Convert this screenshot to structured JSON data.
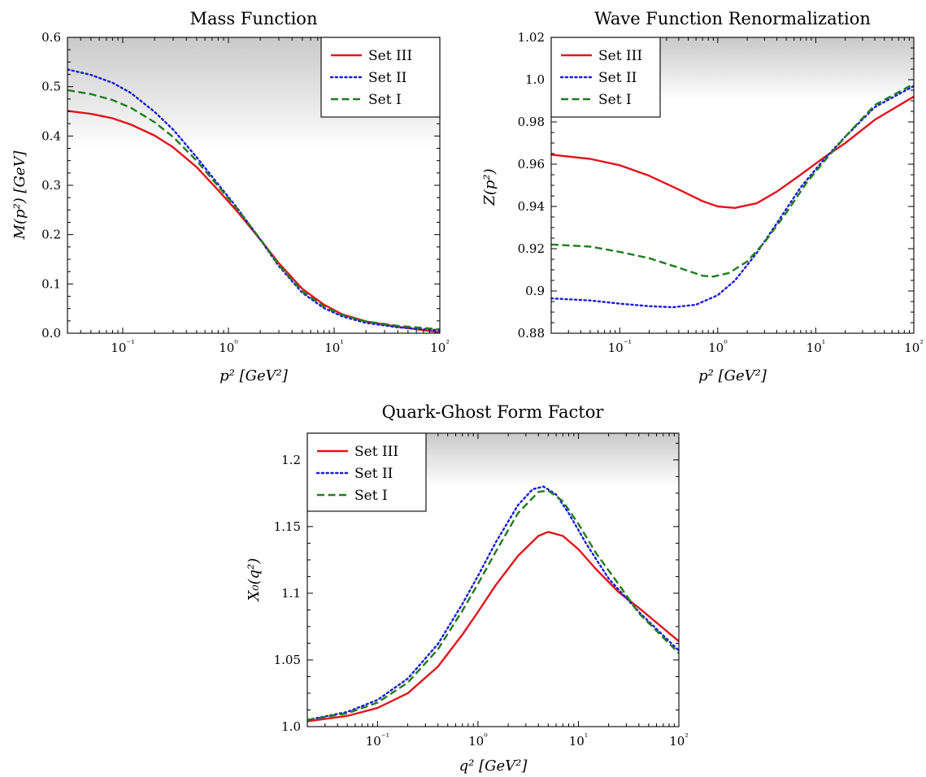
{
  "chart_data": [
    {
      "type": "line",
      "title": "Mass Function",
      "xlabel": "p² [GeV²]",
      "ylabel": "M(p²) [GeV]",
      "xscale": "log",
      "xlim": [
        0.03,
        100
      ],
      "ylim": [
        0.0,
        0.6
      ],
      "x_ticks": [
        {
          "value": 0.1,
          "label": "10⁻¹"
        },
        {
          "value": 1,
          "label": "10⁰"
        },
        {
          "value": 10,
          "label": "10¹"
        },
        {
          "value": 100,
          "label": "10²"
        }
      ],
      "y_ticks": [
        {
          "value": 0.0,
          "label": "0.0"
        },
        {
          "value": 0.1,
          "label": "0.1"
        },
        {
          "value": 0.2,
          "label": "0.2"
        },
        {
          "value": 0.3,
          "label": "0.3"
        },
        {
          "value": 0.4,
          "label": "0.4"
        },
        {
          "value": 0.5,
          "label": "0.5"
        },
        {
          "value": 0.6,
          "label": "0.6"
        }
      ],
      "grid": false,
      "legend_position": "top-right",
      "shaded_band": [
        0.37,
        0.6
      ],
      "series": [
        {
          "name": "Set III",
          "color": "#e3141b",
          "dash": "solid",
          "x": [
            0.03,
            0.05,
            0.08,
            0.12,
            0.2,
            0.3,
            0.5,
            0.8,
            1.2,
            2,
            3,
            5,
            8,
            12,
            20,
            40,
            100
          ],
          "y": [
            0.451,
            0.445,
            0.436,
            0.423,
            0.401,
            0.377,
            0.337,
            0.29,
            0.248,
            0.19,
            0.142,
            0.09,
            0.058,
            0.038,
            0.024,
            0.013,
            0.002
          ]
        },
        {
          "name": "Set II",
          "color": "#1a1adb",
          "dash": "dotted",
          "x": [
            0.03,
            0.05,
            0.08,
            0.12,
            0.2,
            0.3,
            0.5,
            0.8,
            1.2,
            2,
            3,
            5,
            8,
            12,
            20,
            40,
            100
          ],
          "y": [
            0.535,
            0.524,
            0.508,
            0.487,
            0.449,
            0.413,
            0.357,
            0.302,
            0.255,
            0.19,
            0.136,
            0.082,
            0.051,
            0.034,
            0.021,
            0.012,
            0.006
          ]
        },
        {
          "name": "Set I",
          "color": "#1e7d1e",
          "dash": "dashed",
          "x": [
            0.03,
            0.05,
            0.08,
            0.12,
            0.2,
            0.3,
            0.5,
            0.8,
            1.2,
            2,
            3,
            5,
            8,
            12,
            20,
            40,
            100
          ],
          "y": [
            0.493,
            0.485,
            0.473,
            0.457,
            0.428,
            0.398,
            0.35,
            0.298,
            0.253,
            0.191,
            0.138,
            0.085,
            0.054,
            0.037,
            0.024,
            0.015,
            0.008
          ]
        }
      ]
    },
    {
      "type": "line",
      "title": "Wave Function Renormalization",
      "xlabel": "p² [GeV²]",
      "ylabel": "Z(p²)",
      "xscale": "log",
      "xlim": [
        0.02,
        100
      ],
      "ylim": [
        0.88,
        1.02
      ],
      "x_ticks": [
        {
          "value": 0.1,
          "label": "10⁻¹"
        },
        {
          "value": 1,
          "label": "10⁰"
        },
        {
          "value": 10,
          "label": "10¹"
        },
        {
          "value": 100,
          "label": "10²"
        }
      ],
      "y_ticks": [
        {
          "value": 0.88,
          "label": "0.88"
        },
        {
          "value": 0.9,
          "label": "0.9"
        },
        {
          "value": 0.92,
          "label": "0.92"
        },
        {
          "value": 0.94,
          "label": "0.94"
        },
        {
          "value": 0.96,
          "label": "0.96"
        },
        {
          "value": 0.98,
          "label": "0.98"
        },
        {
          "value": 1.0,
          "label": "1.0"
        },
        {
          "value": 1.02,
          "label": "1.02"
        }
      ],
      "grid": false,
      "legend_position": "top-left",
      "shaded_band": [
        0.99,
        1.02
      ],
      "series": [
        {
          "name": "Set III",
          "color": "#e3141b",
          "dash": "solid",
          "x": [
            0.02,
            0.05,
            0.1,
            0.2,
            0.4,
            0.7,
            1.0,
            1.5,
            2.5,
            4,
            7,
            12,
            20,
            40,
            100
          ],
          "y": [
            0.9645,
            0.9625,
            0.9595,
            0.9545,
            0.948,
            0.9425,
            0.94,
            0.9393,
            0.9415,
            0.947,
            0.955,
            0.963,
            0.97,
            0.981,
            0.992
          ]
        },
        {
          "name": "Set II",
          "color": "#1a1adb",
          "dash": "dotted",
          "x": [
            0.02,
            0.05,
            0.1,
            0.2,
            0.35,
            0.6,
            1.0,
            1.5,
            2.5,
            4,
            7,
            12,
            20,
            40,
            100
          ],
          "y": [
            0.8965,
            0.8955,
            0.894,
            0.8928,
            0.8923,
            0.8935,
            0.898,
            0.905,
            0.918,
            0.932,
            0.949,
            0.962,
            0.973,
            0.987,
            0.997
          ]
        },
        {
          "name": "Set I",
          "color": "#1e7d1e",
          "dash": "dashed",
          "x": [
            0.02,
            0.05,
            0.1,
            0.2,
            0.4,
            0.7,
            0.9,
            1.3,
            2.0,
            3,
            5,
            8,
            12,
            20,
            40,
            100
          ],
          "y": [
            0.922,
            0.921,
            0.9185,
            0.9155,
            0.911,
            0.9072,
            0.9068,
            0.9085,
            0.914,
            0.923,
            0.937,
            0.951,
            0.961,
            0.973,
            0.988,
            0.998
          ]
        }
      ]
    },
    {
      "type": "line",
      "title": "Quark-Ghost Form Factor",
      "xlabel": "q² [GeV²]",
      "ylabel": "X₀(q²)",
      "xscale": "log",
      "xlim": [
        0.02,
        100
      ],
      "ylim": [
        1.0,
        1.22
      ],
      "x_ticks": [
        {
          "value": 0.1,
          "label": "10⁻¹"
        },
        {
          "value": 1,
          "label": "10⁰"
        },
        {
          "value": 10,
          "label": "10¹"
        },
        {
          "value": 100,
          "label": "10²"
        }
      ],
      "y_ticks": [
        {
          "value": 1.0,
          "label": "1.0"
        },
        {
          "value": 1.05,
          "label": "1.05"
        },
        {
          "value": 1.1,
          "label": "1.1"
        },
        {
          "value": 1.15,
          "label": "1.15"
        },
        {
          "value": 1.2,
          "label": "1.2"
        }
      ],
      "grid": false,
      "legend_position": "top-left",
      "shaded_band": [
        1.18,
        1.22
      ],
      "series": [
        {
          "name": "Set III",
          "color": "#e3141b",
          "dash": "solid",
          "x": [
            0.02,
            0.05,
            0.1,
            0.2,
            0.4,
            0.7,
            1.0,
            1.5,
            2.5,
            4,
            5,
            7,
            10,
            15,
            25,
            40,
            100
          ],
          "y": [
            1.004,
            1.008,
            1.014,
            1.025,
            1.045,
            1.069,
            1.086,
            1.106,
            1.128,
            1.143,
            1.146,
            1.143,
            1.133,
            1.118,
            1.101,
            1.089,
            1.064
          ]
        },
        {
          "name": "Set II",
          "color": "#1a1adb",
          "dash": "dotted",
          "x": [
            0.02,
            0.05,
            0.1,
            0.2,
            0.4,
            0.7,
            1.0,
            1.5,
            2.5,
            3.5,
            4.5,
            6,
            8,
            12,
            20,
            40,
            100
          ],
          "y": [
            1.005,
            1.011,
            1.02,
            1.036,
            1.062,
            1.092,
            1.113,
            1.138,
            1.166,
            1.178,
            1.18,
            1.174,
            1.16,
            1.137,
            1.111,
            1.086,
            1.057
          ]
        },
        {
          "name": "Set I",
          "color": "#1e7d1e",
          "dash": "dashed",
          "x": [
            0.02,
            0.05,
            0.1,
            0.2,
            0.4,
            0.7,
            1.0,
            1.5,
            2.5,
            4,
            5,
            7,
            10,
            15,
            25,
            40,
            100
          ],
          "y": [
            1.005,
            1.01,
            1.018,
            1.033,
            1.058,
            1.087,
            1.107,
            1.131,
            1.16,
            1.176,
            1.177,
            1.169,
            1.152,
            1.13,
            1.107,
            1.085,
            1.055
          ]
        }
      ]
    }
  ]
}
